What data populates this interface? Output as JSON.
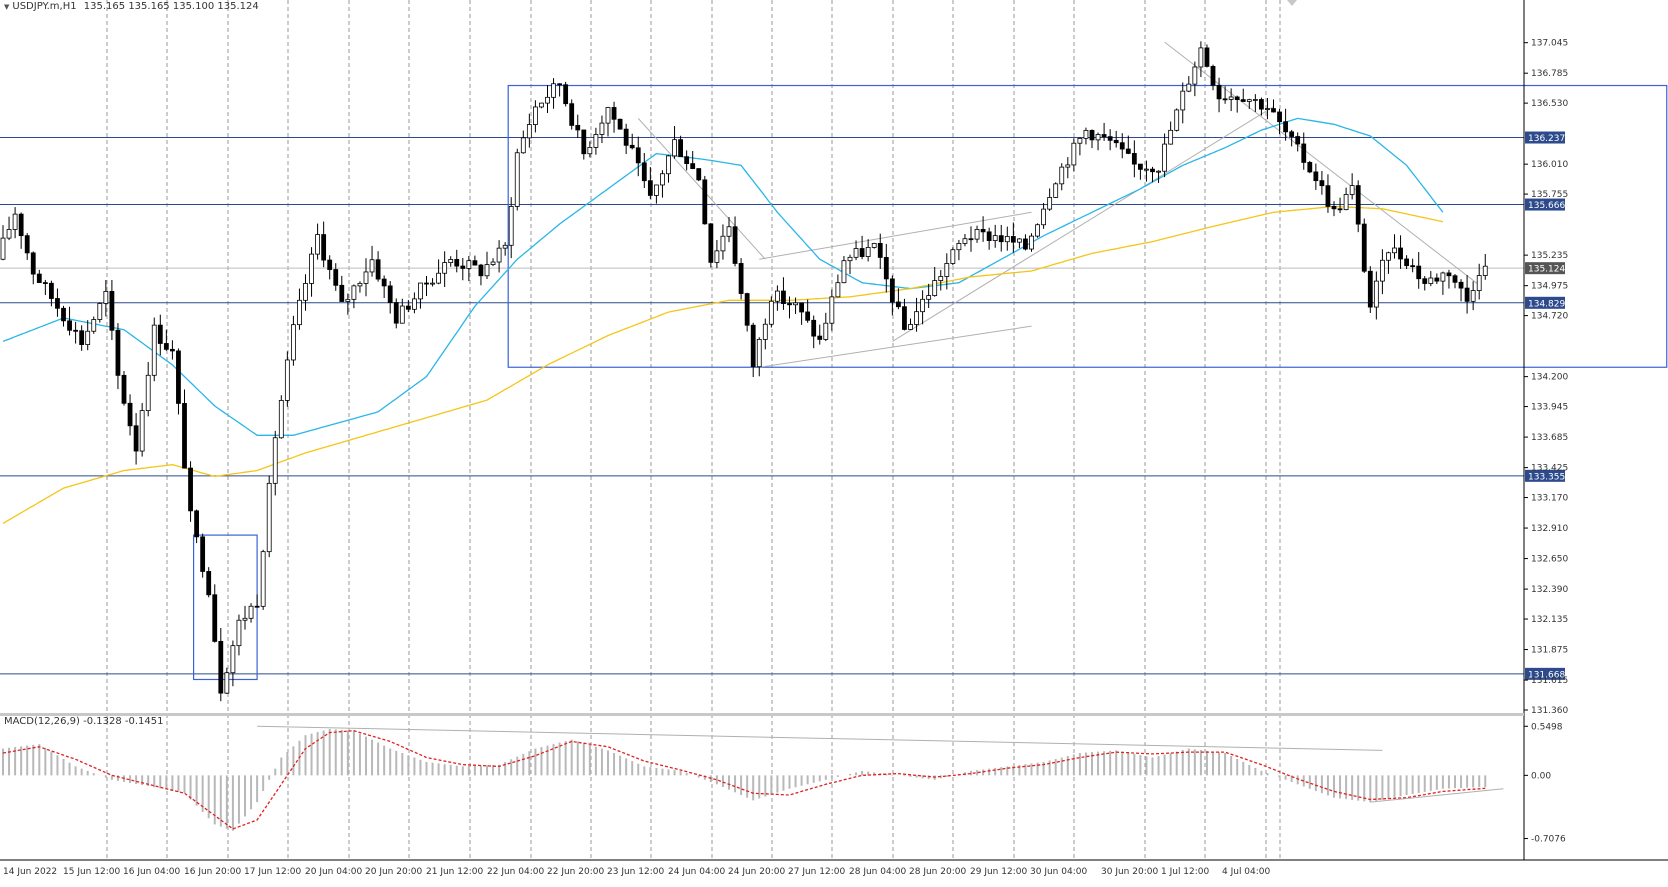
{
  "header": {
    "symbol": "USDJPY.m,H1",
    "ohlc": "135.165 135.165 135.100 135.124"
  },
  "macd_header": {
    "label": "MACD(12,26,9) -0.1328 -0.1451"
  },
  "colors": {
    "candle": "#000000",
    "ma_fast": "#29b6e8",
    "ma_slow": "#f5c518",
    "level_line": "#2c4a8c",
    "box": "#3a62d6",
    "trendline": "#b0b0b0",
    "grid": "#9a9a9a",
    "highlight_label_bg": "#2c4a8c",
    "macd_hist": "#b8b8b8",
    "macd_signal": "#e02020"
  },
  "chart_data": [
    {
      "type": "candlestick",
      "symbol": "USDJPY.m",
      "timeframe": "H1",
      "y_axis_ticks": [
        "137.045",
        "136.785",
        "136.530",
        "136.010",
        "135.755",
        "135.235",
        "134.975",
        "134.720",
        "134.200",
        "133.945",
        "133.685",
        "133.425",
        "133.170",
        "132.910",
        "132.650",
        "132.390",
        "132.135",
        "131.875",
        "131.615",
        "131.360"
      ],
      "highlighted_levels": [
        "136.237",
        "135.666",
        "135.124",
        "134.829",
        "133.355",
        "131.668"
      ],
      "ylim": [
        131.36,
        137.17
      ],
      "x_axis_ticks": [
        "14 Jun 2022",
        "15 Jun 12:00",
        "16 Jun 04:00",
        "16 Jun 20:00",
        "17 Jun 12:00",
        "20 Jun 04:00",
        "20 Jun 20:00",
        "21 Jun 12:00",
        "22 Jun 04:00",
        "22 Jun 20:00",
        "23 Jun 12:00",
        "24 Jun 04:00",
        "24 Jun 20:00",
        "27 Jun 12:00",
        "28 Jun 04:00",
        "28 Jun 20:00",
        "29 Jun 12:00",
        "30 Jun 04:00",
        "30 Jun 20:00",
        "1 Jul 12:00",
        "4 Jul 04:00"
      ],
      "bar_count": 250,
      "price_path": [
        [
          0,
          135.2
        ],
        [
          3,
          135.6
        ],
        [
          6,
          135.1
        ],
        [
          10,
          134.8
        ],
        [
          14,
          134.5
        ],
        [
          18,
          134.9
        ],
        [
          20,
          134.2
        ],
        [
          23,
          133.6
        ],
        [
          26,
          134.6
        ],
        [
          29,
          134.4
        ],
        [
          32,
          133.0
        ],
        [
          35,
          132.4
        ],
        [
          37,
          131.55
        ],
        [
          40,
          132.1
        ],
        [
          43,
          132.3
        ],
        [
          46,
          133.7
        ],
        [
          49,
          134.6
        ],
        [
          53,
          135.4
        ],
        [
          57,
          134.8
        ],
        [
          62,
          135.2
        ],
        [
          66,
          134.7
        ],
        [
          71,
          135.0
        ],
        [
          75,
          135.2
        ],
        [
          80,
          135.1
        ],
        [
          84,
          135.3
        ],
        [
          86,
          136.1
        ],
        [
          89,
          136.5
        ],
        [
          93,
          136.7
        ],
        [
          97,
          136.1
        ],
        [
          101,
          136.5
        ],
        [
          105,
          136.1
        ],
        [
          108,
          135.7
        ],
        [
          112,
          136.2
        ],
        [
          116,
          135.9
        ],
        [
          118,
          135.2
        ],
        [
          121,
          135.5
        ],
        [
          125,
          134.3
        ],
        [
          128,
          134.9
        ],
        [
          132,
          134.8
        ],
        [
          136,
          134.5
        ],
        [
          140,
          135.2
        ],
        [
          145,
          135.3
        ],
        [
          150,
          134.6
        ],
        [
          155,
          135.0
        ],
        [
          160,
          135.4
        ],
        [
          165,
          135.4
        ],
        [
          170,
          135.3
        ],
        [
          175,
          135.9
        ],
        [
          180,
          136.3
        ],
        [
          184,
          136.2
        ],
        [
          188,
          136.0
        ],
        [
          192,
          136.0
        ],
        [
          196,
          136.6
        ],
        [
          199,
          137.0
        ],
        [
          202,
          136.6
        ],
        [
          206,
          136.6
        ],
        [
          210,
          136.5
        ],
        [
          214,
          136.2
        ],
        [
          218,
          135.9
        ],
        [
          221,
          135.6
        ],
        [
          224,
          135.8
        ],
        [
          227,
          134.8
        ],
        [
          230,
          135.3
        ],
        [
          233,
          135.2
        ],
        [
          236,
          135.0
        ],
        [
          240,
          135.1
        ],
        [
          243,
          134.85
        ],
        [
          245,
          135.12
        ]
      ],
      "ma_fast": [
        [
          0,
          134.5
        ],
        [
          10,
          134.7
        ],
        [
          20,
          134.6
        ],
        [
          28,
          134.3
        ],
        [
          35,
          133.95
        ],
        [
          42,
          133.7
        ],
        [
          48,
          133.7
        ],
        [
          55,
          133.8
        ],
        [
          62,
          133.9
        ],
        [
          70,
          134.2
        ],
        [
          78,
          134.8
        ],
        [
          85,
          135.2
        ],
        [
          92,
          135.5
        ],
        [
          100,
          135.8
        ],
        [
          108,
          136.1
        ],
        [
          116,
          136.05
        ],
        [
          122,
          136.0
        ],
        [
          128,
          135.6
        ],
        [
          135,
          135.2
        ],
        [
          142,
          135.0
        ],
        [
          150,
          134.95
        ],
        [
          158,
          135.0
        ],
        [
          165,
          135.2
        ],
        [
          172,
          135.4
        ],
        [
          180,
          135.6
        ],
        [
          188,
          135.8
        ],
        [
          195,
          136.0
        ],
        [
          202,
          136.15
        ],
        [
          208,
          136.3
        ],
        [
          214,
          136.4
        ],
        [
          220,
          136.35
        ],
        [
          226,
          136.25
        ],
        [
          232,
          136.0
        ],
        [
          238,
          135.6
        ]
      ],
      "ma_slow": [
        [
          0,
          132.95
        ],
        [
          10,
          133.25
        ],
        [
          20,
          133.4
        ],
        [
          28,
          133.45
        ],
        [
          35,
          133.35
        ],
        [
          42,
          133.4
        ],
        [
          50,
          133.55
        ],
        [
          60,
          133.7
        ],
        [
          70,
          133.85
        ],
        [
          80,
          134.0
        ],
        [
          90,
          134.3
        ],
        [
          100,
          134.55
        ],
        [
          110,
          134.75
        ],
        [
          120,
          134.85
        ],
        [
          130,
          134.85
        ],
        [
          140,
          134.88
        ],
        [
          150,
          134.95
        ],
        [
          160,
          135.05
        ],
        [
          170,
          135.1
        ],
        [
          180,
          135.25
        ],
        [
          190,
          135.35
        ],
        [
          200,
          135.48
        ],
        [
          210,
          135.6
        ],
        [
          220,
          135.65
        ],
        [
          228,
          135.63
        ],
        [
          238,
          135.52
        ]
      ],
      "annotations": [
        {
          "kind": "range-box",
          "from_bar": 84,
          "to_bar": 275,
          "high": 136.68,
          "low": 134.28
        },
        {
          "kind": "range-box",
          "from_bar": 32,
          "to_bar": 42,
          "high": 132.85,
          "low": 131.62
        },
        {
          "kind": "trendline",
          "from": [
            125,
            134.28
          ],
          "to": [
            170,
            134.63
          ]
        },
        {
          "kind": "trendline",
          "from": [
            125,
            135.2
          ],
          "to": [
            170,
            135.6
          ]
        },
        {
          "kind": "trendline",
          "from": [
            105,
            136.4
          ],
          "to": [
            126,
            135.2
          ]
        },
        {
          "kind": "trendline",
          "from": [
            147,
            134.5
          ],
          "to": [
            210,
            136.5
          ]
        },
        {
          "kind": "trendline",
          "from": [
            192,
            137.05
          ],
          "to": [
            244,
            134.98
          ]
        }
      ]
    },
    {
      "type": "bar",
      "name": "MACD(12,26,9)",
      "values_label": "-0.1328 -0.1451",
      "y_axis_ticks": [
        "0.5498",
        "0.00",
        "-0.7076"
      ],
      "ylim": [
        -0.78,
        0.62
      ],
      "histogram": [
        [
          0,
          0.3
        ],
        [
          6,
          0.35
        ],
        [
          12,
          0.1
        ],
        [
          18,
          -0.05
        ],
        [
          24,
          -0.12
        ],
        [
          30,
          -0.2
        ],
        [
          35,
          -0.55
        ],
        [
          38,
          -0.62
        ],
        [
          42,
          -0.3
        ],
        [
          46,
          0.2
        ],
        [
          50,
          0.45
        ],
        [
          54,
          0.52
        ],
        [
          58,
          0.5
        ],
        [
          64,
          0.3
        ],
        [
          70,
          0.15
        ],
        [
          76,
          0.1
        ],
        [
          82,
          0.12
        ],
        [
          88,
          0.3
        ],
        [
          94,
          0.4
        ],
        [
          100,
          0.28
        ],
        [
          106,
          0.1
        ],
        [
          112,
          0.05
        ],
        [
          118,
          -0.1
        ],
        [
          124,
          -0.28
        ],
        [
          130,
          -0.15
        ],
        [
          136,
          -0.05
        ],
        [
          142,
          0.05
        ],
        [
          148,
          0.0
        ],
        [
          154,
          -0.05
        ],
        [
          160,
          0.05
        ],
        [
          166,
          0.1
        ],
        [
          172,
          0.15
        ],
        [
          178,
          0.25
        ],
        [
          184,
          0.28
        ],
        [
          190,
          0.2
        ],
        [
          196,
          0.3
        ],
        [
          202,
          0.25
        ],
        [
          208,
          0.05
        ],
        [
          214,
          -0.1
        ],
        [
          220,
          -0.25
        ],
        [
          226,
          -0.3
        ],
        [
          232,
          -0.22
        ],
        [
          238,
          -0.15
        ],
        [
          245,
          -0.13
        ]
      ],
      "signal": [
        [
          0,
          0.25
        ],
        [
          6,
          0.32
        ],
        [
          12,
          0.18
        ],
        [
          18,
          0.0
        ],
        [
          24,
          -0.1
        ],
        [
          30,
          -0.2
        ],
        [
          35,
          -0.45
        ],
        [
          38,
          -0.6
        ],
        [
          42,
          -0.5
        ],
        [
          46,
          -0.1
        ],
        [
          50,
          0.3
        ],
        [
          54,
          0.48
        ],
        [
          58,
          0.5
        ],
        [
          64,
          0.38
        ],
        [
          70,
          0.2
        ],
        [
          76,
          0.12
        ],
        [
          82,
          0.1
        ],
        [
          88,
          0.22
        ],
        [
          94,
          0.38
        ],
        [
          100,
          0.32
        ],
        [
          106,
          0.16
        ],
        [
          112,
          0.06
        ],
        [
          118,
          -0.05
        ],
        [
          124,
          -0.2
        ],
        [
          130,
          -0.22
        ],
        [
          136,
          -0.1
        ],
        [
          142,
          0.0
        ],
        [
          148,
          0.02
        ],
        [
          154,
          -0.02
        ],
        [
          160,
          0.02
        ],
        [
          166,
          0.08
        ],
        [
          172,
          0.12
        ],
        [
          178,
          0.2
        ],
        [
          184,
          0.26
        ],
        [
          190,
          0.24
        ],
        [
          196,
          0.26
        ],
        [
          202,
          0.26
        ],
        [
          208,
          0.12
        ],
        [
          214,
          -0.04
        ],
        [
          220,
          -0.18
        ],
        [
          226,
          -0.27
        ],
        [
          232,
          -0.25
        ],
        [
          238,
          -0.18
        ],
        [
          245,
          -0.145
        ]
      ],
      "annotations": [
        {
          "kind": "trendline",
          "from": [
            42,
            0.55
          ],
          "to": [
            228,
            0.28
          ]
        },
        {
          "kind": "trendline",
          "from": [
            226,
            -0.3
          ],
          "to": [
            248,
            -0.15
          ]
        }
      ]
    }
  ]
}
